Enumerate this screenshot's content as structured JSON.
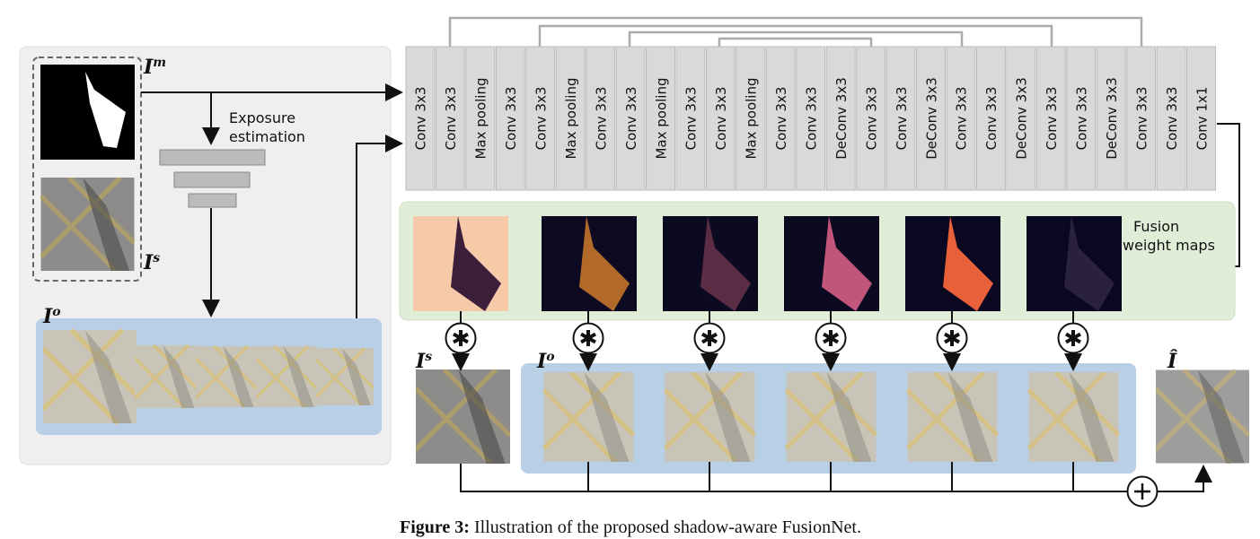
{
  "labels": {
    "mask": {
      "base": "I",
      "sup": "m"
    },
    "shadow": {
      "base": "I",
      "sup": "s"
    },
    "overexposed": {
      "base": "I",
      "sup": "o"
    },
    "output": "Î"
  },
  "exposure_estimation": [
    "Exposure",
    "estimation"
  ],
  "fusion_weight_maps": [
    "Fusion",
    "weight maps"
  ],
  "layers": [
    "Conv 3x3",
    "Conv 3x3",
    "Max pooling",
    "Conv 3x3",
    "Conv 3x3",
    "Max pooling",
    "Conv 3x3",
    "Conv 3x3",
    "Max pooling",
    "Conv 3x3",
    "Conv 3x3",
    "Max pooling",
    "Conv 3x3",
    "Conv 3x3",
    "DeConv 3x3",
    "Conv 3x3",
    "Conv 3x3",
    "DeConv 3x3",
    "Conv 3x3",
    "Conv 3x3",
    "DeConv 3x3",
    "Conv 3x3",
    "Conv 3x3",
    "DeConv 3x3",
    "Conv 3x3",
    "Conv 3x3",
    "Conv 1x1"
  ],
  "caption": {
    "prefix": "Figure 3:",
    "text": "Illustration of the proposed shadow-aware FusionNet."
  }
}
